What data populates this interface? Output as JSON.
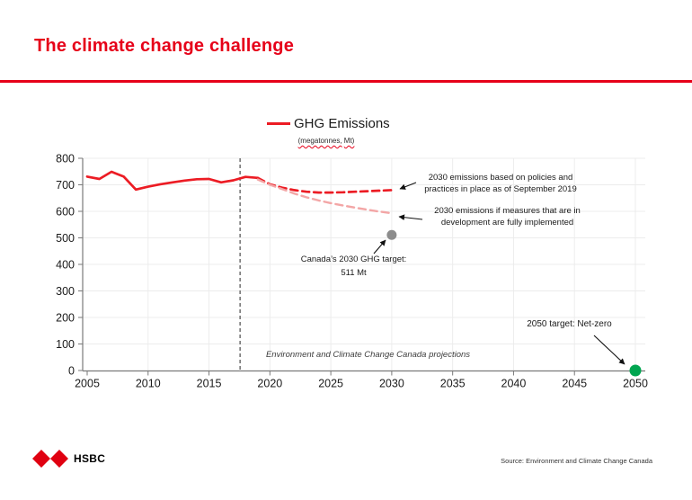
{
  "slide": {
    "title": "The climate change challenge"
  },
  "footer": {
    "logo_text": "HSBC",
    "source": "Source: Environment and Climate Change Canada"
  },
  "colors": {
    "brand_red": "#e60019",
    "series_red": "#ec1c24",
    "series_pink": "#f3a6a6",
    "target_gray": "#8c8c8c",
    "netzero_green": "#00a550",
    "divider_gray": "#595959",
    "grid_gray": "#ececec",
    "axis_gray": "#7a7a7a"
  },
  "chart_data": {
    "type": "line",
    "title": "GHG Emissions",
    "subtitle": "(megatonnes, Mt)",
    "subtitle_parts": [
      "(megatonnes,",
      "Mt)"
    ],
    "xlabel": "",
    "ylabel": "megatonnes (Mt)",
    "xlim": [
      2004.6,
      2050.8
    ],
    "ylim": [
      0,
      800
    ],
    "x_ticks": [
      2005,
      2010,
      2015,
      2020,
      2025,
      2030,
      2035,
      2040,
      2045,
      2050
    ],
    "y_ticks": [
      0,
      100,
      200,
      300,
      400,
      500,
      600,
      700,
      800
    ],
    "grid": true,
    "divider_year": 2017.55,
    "legend_position": "top-center",
    "series": [
      {
        "name": "GHG Emissions (historical)",
        "style": "solid",
        "color_key": "series_red",
        "points": [
          [
            2005,
            731
          ],
          [
            2006,
            722
          ],
          [
            2007,
            749
          ],
          [
            2008,
            731
          ],
          [
            2009,
            682
          ],
          [
            2010,
            693
          ],
          [
            2011,
            702
          ],
          [
            2012,
            709
          ],
          [
            2013,
            716
          ],
          [
            2014,
            721
          ],
          [
            2015,
            722
          ],
          [
            2016,
            709
          ],
          [
            2017,
            717
          ],
          [
            2018,
            730
          ],
          [
            2019,
            726
          ]
        ]
      },
      {
        "name": "Projection: policies and practices as of September 2019",
        "style": "dashed",
        "color_key": "series_red",
        "points": [
          [
            2019,
            726
          ],
          [
            2020,
            702
          ],
          [
            2021,
            689
          ],
          [
            2022,
            680
          ],
          [
            2023,
            674
          ],
          [
            2024,
            671
          ],
          [
            2025,
            671
          ],
          [
            2026,
            672
          ],
          [
            2027,
            674
          ],
          [
            2028,
            676
          ],
          [
            2029,
            678
          ],
          [
            2030,
            680
          ]
        ]
      },
      {
        "name": "Projection: measures in development fully implemented",
        "style": "dashed",
        "color_key": "series_pink",
        "points": [
          [
            2019,
            720
          ],
          [
            2020,
            700
          ],
          [
            2021,
            684
          ],
          [
            2022,
            667
          ],
          [
            2023,
            653
          ],
          [
            2024,
            641
          ],
          [
            2025,
            631
          ],
          [
            2026,
            622
          ],
          [
            2027,
            614
          ],
          [
            2028,
            606
          ],
          [
            2029,
            599
          ],
          [
            2030,
            593
          ]
        ]
      }
    ],
    "markers": [
      {
        "name": "canada-2030-ghg-target",
        "label": "Canada’s 2030 GHG target: 511 Mt",
        "x": 2030,
        "y": 511,
        "color_key": "target_gray",
        "r": 5.5
      },
      {
        "name": "2050-net-zero-target",
        "label": "2050 target: Net-zero",
        "x": 2050,
        "y": 0,
        "color_key": "netzero_green",
        "r": 6.5
      }
    ],
    "annotations": {
      "policies": {
        "line1": "2030 emissions based on policies and",
        "line2": "practices in place as of September 2019"
      },
      "measures": {
        "line1": "2030 emissions if measures that are in",
        "line2": "development are fully implemented"
      },
      "target2030": {
        "line1": "Canada’s 2030 GHG target:",
        "line2": "511 Mt"
      },
      "target2050": {
        "text": "2050 target: Net-zero"
      },
      "note": {
        "text": "Environment and Climate Change Canada projections"
      }
    }
  }
}
